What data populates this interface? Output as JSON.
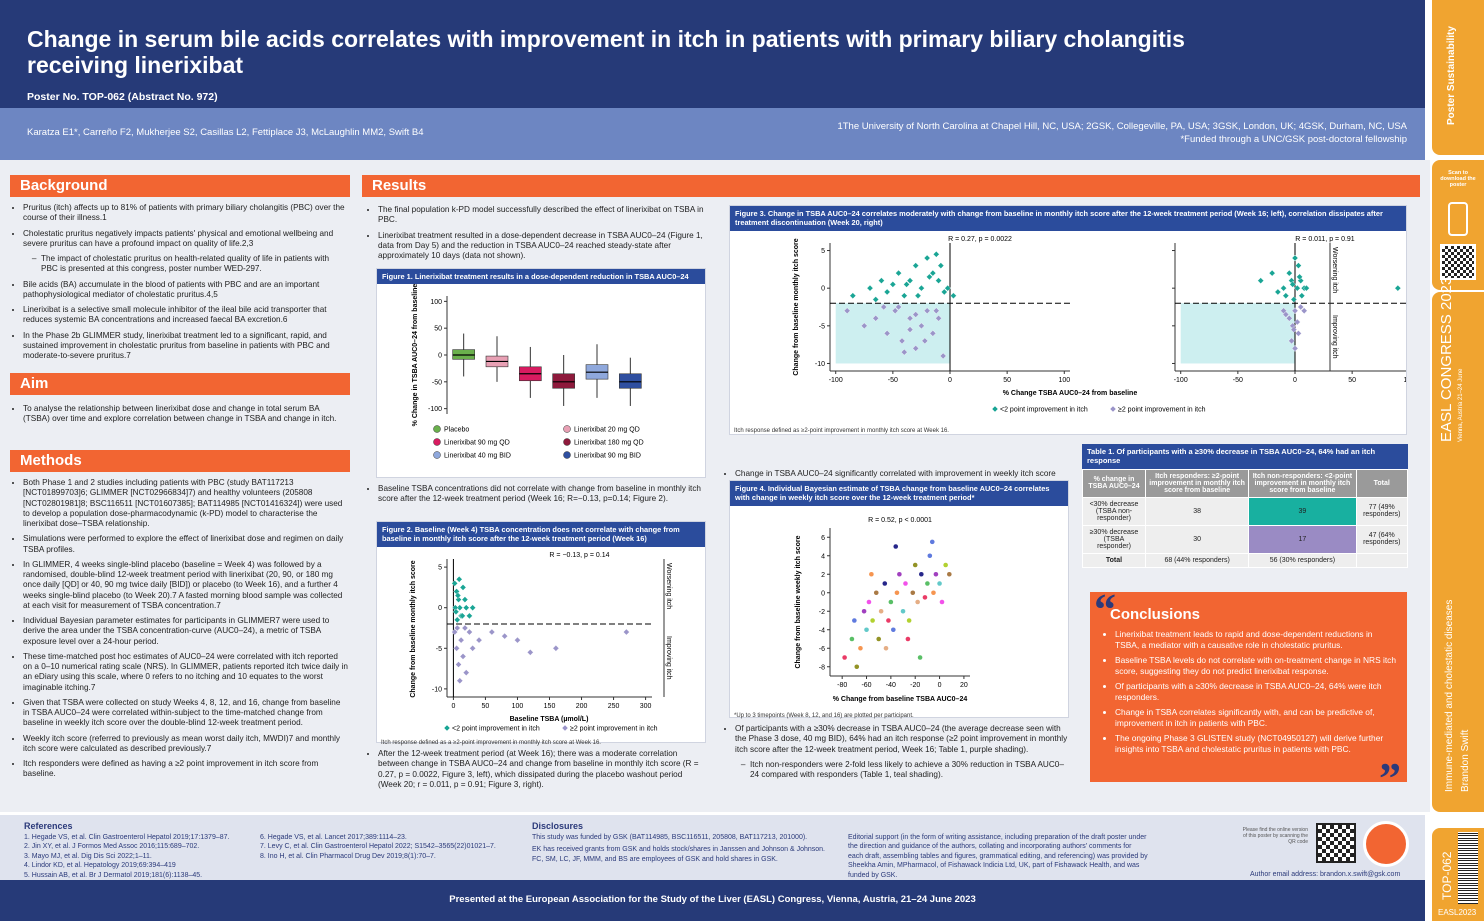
{
  "header": {
    "title": "Change in serum bile acids correlates with improvement in itch in patients with primary biliary cholangitis receiving linerixibat",
    "poster_no": "Poster No. TOP-062 (Abstract No. 972)",
    "authors": "Karatza E1*, Carreño F2, Mukherjee S2, Casillas L2, Fettiplace J3, McLaughlin MM2, Swift B4",
    "affiliations": "1The University of North Carolina at Chapel Hill, NC, USA; 2GSK, Collegeville, PA, USA; 3GSK, London, UK; 4GSK, Durham, NC, USA",
    "funding": "*Funded through a UNC/GSK post-doctoral fellowship"
  },
  "background": {
    "heading": "Background",
    "bullets": [
      "Pruritus (itch) affects up to 81% of patients with primary biliary cholangitis (PBC) over the course of their illness.1",
      "Cholestatic pruritus negatively impacts patients' physical and emotional wellbeing and severe pruritus can have a profound impact on quality of life.2,3",
      "Bile acids (BA) accumulate in the blood of patients with PBC and are an important pathophysiological mediator of cholestatic pruritus.4,5",
      "Linerixibat is a selective small molecule inhibitor of the ileal bile acid transporter that reduces systemic BA concentrations and increased faecal BA excretion.6",
      "In the Phase 2b GLIMMER study, linerixibat treatment led to a significant, rapid, and sustained improvement in cholestatic pruritus from baseline in patients with PBC and moderate-to-severe pruritus.7"
    ],
    "sub_bullet": "The impact of cholestatic pruritus on health-related quality of life in patients with PBC is presented at this congress, poster number WED-297."
  },
  "aim": {
    "heading": "Aim",
    "text": "To analyse the relationship between linerixibat dose and change in total serum BA (TSBA) over time and explore correlation between change in TSBA and change in itch."
  },
  "methods": {
    "heading": "Methods",
    "bullets": [
      "Both Phase 1 and 2 studies including patients with PBC (study BAT117213 [NCT01899703]6; GLIMMER [NCT02966834]7) and healthy volunteers (205808 [NCT02801981]8; BSC116511 [NCT01607385]; BAT114985 [NCT01416324]) were used to develop a population dose-pharmacodynamic (k-PD) model to characterise the linerixibat dose–TSBA relationship.",
      "Simulations were performed to explore the effect of linerixibat dose and regimen on daily TSBA profiles.",
      "In GLIMMER, 4 weeks single-blind placebo (baseline = Week 4) was followed by a randomised, double-blind 12-week treatment period with linerixibat (20, 90, or 180 mg once daily [QD] or 40, 90 mg twice daily [BID]) or placebo (to Week 16), and a further 4 weeks single-blind placebo (to Week 20).7 A fasted morning blood sample was collected at each visit for measurement of TSBA concentration.7",
      "Individual Bayesian parameter estimates for participants in GLIMMER7 were used to derive the area under the TSBA concentration-curve (AUC0–24), a metric of TSBA exposure level over a 24-hour period.",
      "These time-matched post hoc estimates of AUC0–24 were correlated with itch reported on a 0–10 numerical rating scale (NRS). In GLIMMER, patients reported itch twice daily in an eDiary using this scale, where 0 refers to no itching and 10 equates to the worst imaginable itching.7",
      "Given that TSBA were collected on study Weeks 4, 8, 12, and 16, change from baseline in TSBA AUC0–24 were correlated within-subject to the time-matched change from baseline in weekly itch score over the double-blind 12-week treatment period.",
      "Weekly itch score (referred to previously as mean worst daily itch, MWDI)7 and monthly itch score were calculated as described previously.7",
      "Itch responders were defined as having a ≥2 point improvement in itch score from baseline."
    ]
  },
  "results": {
    "heading": "Results",
    "col1": [
      "The final population k-PD model successfully described the effect of linerixibat on TSBA in PBC.",
      "Linerixibat treatment resulted in a dose-dependent decrease in TSBA AUC0–24 (Figure 1, data from Day 5) and the reduction in TSBA AUC0–24 reached steady-state after approximately 10 days (data not shown).",
      "Baseline TSBA concentrations did not correlate with change from baseline in monthly itch score after the 12-week treatment period (Week 16; R=−0.13, p=0.14; Figure 2).",
      "After the 12-week treatment period (at Week 16); there was a moderate correlation between change in TSBA AUC0–24 and change from baseline in monthly itch score (R = 0.27, p = 0.0022, Figure 3, left), which dissipated during the placebo washout period (Week 20; r = 0.011, p = 0.91; Figure 3, right)."
    ],
    "col2": [
      "Change in TSBA AUC0–24 significantly correlated with improvement in weekly itch score from baseline over the 12-week treatment period (R = 0.52, p < 0.0001; Figure 4).",
      "Of participants with a ≥30% decrease in TSBA AUC0–24 (the average decrease seen with the Phase 3 dose, 40 mg BID), 64% had an itch response (≥2 point improvement in monthly itch score after the 12-week treatment period, Week 16; Table 1, purple shading)."
    ],
    "col2_sub": "Itch non-responders were 2-fold less likely to achieve a 30% reduction in TSBA AUC0–24 compared with responders (Table 1, teal shading)."
  },
  "fig1": {
    "type": "box",
    "title": "Figure 1. Linerixibat treatment results in a dose-dependent reduction in TSBA AUC0–24",
    "ylabel": "% Change in TSBA AUC0–24 from baseline",
    "ylim": [
      -110,
      110
    ],
    "yticks": [
      -100,
      -50,
      0,
      50,
      100
    ],
    "groups": [
      {
        "name": "Placebo",
        "color": "#6ab04c",
        "low": -40,
        "q1": -8,
        "median": 0,
        "q3": 10,
        "high": 40
      },
      {
        "name": "Linerixibat 20 mg QD",
        "color": "#e8a0b4",
        "low": -50,
        "q1": -22,
        "median": -12,
        "q3": -2,
        "high": 35
      },
      {
        "name": "Linerixibat 90 mg QD",
        "color": "#d81b60",
        "low": -80,
        "q1": -48,
        "median": -35,
        "q3": -22,
        "high": 15
      },
      {
        "name": "Linerixibat 180 mg QD",
        "color": "#8e1a3c",
        "low": -95,
        "q1": -62,
        "median": -50,
        "q3": -35,
        "high": 0
      },
      {
        "name": "Linerixibat 40 mg BID",
        "color": "#8fa8dc",
        "low": -80,
        "q1": -45,
        "median": -32,
        "q3": -18,
        "high": 20
      },
      {
        "name": "Linerixibat 90 mg BID",
        "color": "#2f4fa0",
        "low": -95,
        "q1": -62,
        "median": -50,
        "q3": -35,
        "high": -5
      }
    ]
  },
  "fig2": {
    "type": "scatter",
    "title": "Figure 2. Baseline (Week 4) TSBA concentration does not correlate with change from baseline in monthly itch score after the 12-week treatment period (Week 16)",
    "annotation": "R = −0.13, p = 0.14",
    "xlabel": "Baseline TSBA (µmol/L)",
    "ylabel": "Change from baseline monthly itch score",
    "worse": "Worsening itch",
    "better": "Improving itch",
    "xlim": [
      -10,
      310
    ],
    "xticks": [
      0,
      50,
      100,
      150,
      200,
      250,
      300
    ],
    "ylim": [
      -11,
      6
    ],
    "yticks": [
      -10,
      -5,
      0,
      5
    ],
    "threshold": -2,
    "vline": 0,
    "series": [
      {
        "name": "<2 point improvement in itch",
        "color": "#1aa595",
        "x": [
          2,
          5,
          8,
          10,
          12,
          15,
          3,
          6,
          18,
          20,
          25,
          7,
          4,
          30,
          9,
          14
        ],
        "y": [
          3,
          2,
          1,
          0,
          -1,
          2.5,
          0,
          -1.5,
          1,
          0,
          -1,
          1.5,
          -0.5,
          0,
          3.5,
          -1
        ]
      },
      {
        "name": "≥2 point improvement in itch",
        "color": "#9b95c9",
        "x": [
          2,
          5,
          8,
          12,
          15,
          20,
          25,
          30,
          40,
          60,
          80,
          100,
          120,
          160,
          270,
          10,
          18,
          6
        ],
        "y": [
          -3,
          -5,
          -7,
          -4,
          -6,
          -8,
          -3,
          -5,
          -4,
          -3,
          -3.5,
          -4,
          -5.5,
          -5,
          -3,
          -9,
          -2.5,
          -2.5
        ]
      }
    ],
    "footnote": "Itch response defined as a ≥2-point improvement in monthly itch score at Week 16."
  },
  "fig3": {
    "type": "scatter",
    "title": "Figure 3. Change in TSBA AUC0–24 correlates moderately with change from baseline in monthly itch score after the 12-week treatment period (Week 16; left), correlation dissipates after treatment discontinuation (Week 20, right)",
    "xlabel": "% Change TSBA AUC0–24 from baseline",
    "ylabel": "Change from baseline monthly itch score",
    "worse": "Worsening itch",
    "better": "Improving itch",
    "xlim": [
      -105,
      105
    ],
    "xticks": [
      -100,
      -50,
      0,
      50,
      100
    ],
    "ylim": [
      -11,
      6
    ],
    "yticks": [
      -10,
      -5,
      0,
      5
    ],
    "threshold": -2,
    "vline": 0,
    "shade": {
      "x": [
        -100,
        0
      ],
      "y": [
        -10,
        -2
      ]
    },
    "panels": [
      {
        "annotation": "R = 0.27, p = 0.0022",
        "series": [
          {
            "name": "<2 point improvement in itch",
            "color": "#1aa595",
            "x": [
              -85,
              -70,
              -60,
              -50,
              -45,
              -40,
              -35,
              -30,
              -25,
              -20,
              -15,
              -10,
              -5,
              -2,
              -55,
              -38,
              -28,
              -18,
              -8,
              -65,
              3,
              -12
            ],
            "y": [
              -1,
              0,
              1,
              0.5,
              2,
              -1,
              1,
              3,
              0,
              4,
              2,
              1,
              -0.5,
              0,
              -0.5,
              0.5,
              -1,
              1.5,
              3,
              -1.5,
              -1,
              4.5
            ]
          },
          {
            "name": "≥2 point improvement in itch",
            "color": "#9b95c9",
            "x": [
              -90,
              -75,
              -65,
              -55,
              -48,
              -42,
              -35,
              -30,
              -25,
              -20,
              -15,
              -10,
              -6,
              -45,
              -35,
              -22,
              -58,
              -12,
              -30,
              -40
            ],
            "y": [
              -3,
              -5,
              -4,
              -6,
              -3,
              -7,
              -4,
              -8,
              -5,
              -3,
              -6,
              -4,
              -9,
              -2.5,
              -5.5,
              -7,
              -2.5,
              -3,
              -3.5,
              -8.5
            ]
          }
        ]
      },
      {
        "annotation": "R = 0.011, p = 0.91",
        "series": [
          {
            "name": "<2 point improvement in itch",
            "color": "#1aa595",
            "x": [
              -30,
              -10,
              -5,
              -3,
              0,
              2,
              5,
              8,
              -8,
              10,
              -15,
              3,
              -1,
              6,
              90,
              -20,
              -2,
              4
            ],
            "y": [
              1,
              0,
              2,
              1,
              4,
              0,
              1,
              0,
              -1,
              0,
              -0.5,
              3,
              -1.5,
              -1,
              0,
              2,
              0.5,
              1.5
            ]
          },
          {
            "name": "≥2 point improvement in itch",
            "color": "#9b95c9",
            "x": [
              -10,
              -5,
              -2,
              0,
              3,
              5,
              -8,
              -3,
              8,
              0,
              2,
              -1
            ],
            "y": [
              -3,
              -4,
              -5,
              -3,
              -6,
              -2.5,
              -3.5,
              -7,
              -3,
              -8,
              -4.5,
              -5.5
            ]
          }
        ]
      }
    ],
    "footnote": "Itch response defined as ≥2-point improvement in monthly itch score at Week 16."
  },
  "fig4": {
    "type": "scatter",
    "title": "Figure 4. Individual Bayesian estimate of TSBA change from baseline AUC0–24 correlates with change in weekly itch score over the 12-week treatment period*",
    "annotation": "R = 0.52, p < 0.0001",
    "xlabel": "% Change from baseline TSBA AUC0–24",
    "ylabel": "Change from baseline weekly itch score",
    "xlim": [
      -90,
      25
    ],
    "xticks": [
      -80,
      -60,
      -40,
      -20,
      0,
      20
    ],
    "ylim": [
      -9,
      7
    ],
    "yticks": [
      -8,
      -6,
      -4,
      -2,
      0,
      2,
      4,
      6
    ],
    "palette": [
      "#e6194b",
      "#3cb44b",
      "#4363d8",
      "#f58231",
      "#911eb4",
      "#46c0c0",
      "#f032e6",
      "#a5c90c",
      "#9a6324",
      "#808000",
      "#e0a070",
      "#000075"
    ],
    "x": [
      -78,
      -72,
      -70,
      -65,
      -62,
      -60,
      -58,
      -55,
      -52,
      -50,
      -48,
      -45,
      -42,
      -40,
      -38,
      -35,
      -33,
      -30,
      -28,
      -25,
      -22,
      -20,
      -18,
      -15,
      -12,
      -10,
      -8,
      -5,
      -3,
      0,
      2,
      5,
      8,
      -68,
      -44,
      -36,
      -26,
      -16,
      -6,
      -56
    ],
    "y": [
      -7,
      -5,
      -3,
      -6,
      -2,
      -4,
      -1,
      -3,
      0,
      -5,
      -2,
      1,
      -3,
      -1,
      -4,
      0,
      2,
      -2,
      1,
      -3,
      0,
      3,
      -1,
      2,
      -0.5,
      1,
      4,
      0,
      2,
      1,
      -1,
      3,
      2,
      -8,
      -6,
      5,
      -5,
      -7,
      5.5,
      2
    ],
    "footnote": "*Up to 3 timepoints (Week 8, 12, and 16) are plotted per participant."
  },
  "table": {
    "title": "Table 1. Of participants with a ≥30% decrease in TSBA AUC0–24, 64% had an itch response",
    "header": [
      "% change in TSBA AUC0–24",
      "Itch responders: ≥2-point improvement in monthly itch score from baseline",
      "Itch non-responders: <2-point improvement in monthly itch score from baseline",
      "Total"
    ],
    "rows": [
      [
        "<30% decrease (TSBA non-responder)",
        "38",
        "39",
        "77 (49% responders)"
      ],
      [
        "≥30% decrease (TSBA responder)",
        "30",
        "17",
        "47 (64% responders)"
      ],
      [
        "Total",
        "68 (44% responders)",
        "56 (30% responders)"
      ]
    ]
  },
  "conclusions": {
    "heading": "Conclusions",
    "bullets": [
      "Linerixibat treatment leads to rapid and dose-dependent reductions in TSBA, a mediator with a causative role in cholestatic pruritus.",
      "Baseline TSBA levels do not correlate with on-treatment change in NRS itch score, suggesting they do not predict linerixibat response.",
      "Of participants with a ≥30% decrease in TSBA AUC0–24, 64% were itch responders.",
      "Change in TSBA correlates significantly with, and can be predictive of, improvement in itch in patients with PBC.",
      "The ongoing Phase 3 GLISTEN study (NCT04950127) will derive further insights into TSBA and cholestatic pruritus in patients with PBC."
    ]
  },
  "references": {
    "heading": "References",
    "items": [
      "1. Hegade VS, et al. Clin Gastroenterol Hepatol 2019;17:1379–87.",
      "2. Jin XY, et al. J Formos Med Assoc 2016;115:689–702.",
      "3. Mayo MJ, et al. Dig Dis Sci 2022;1–11.",
      "4. Lindor KD, et al. Hepatology 2019;69:394–419",
      "5. Hussain AB, et al. Br J Dermatol 2019;181(6):1138–45.",
      "6. Hegade VS, et al. Lancet 2017;389:1114–23.",
      "7. Levy C, et al. Clin Gastroenterol Hepatol 2022; S1542–3565(22)01021–7.",
      "8. Ino H, et al. Clin Pharmacol Drug Dev 2019;8(1):70–7."
    ]
  },
  "disclosures": {
    "heading": "Disclosures",
    "items": [
      "This study was funded by GSK (BAT114985, BSC116511, 205808, BAT117213, 201000).",
      "EK has received grants from GSK and holds stock/shares in Janssen and Johnson & Johnson. FC, SM, LC, JF, MMM, and BS are employees of GSK and hold shares in GSK.",
      "Editorial support (in the form of writing assistance, including preparation of the draft poster under the direction and guidance of the authors, collating and incorporating authors' comments for each draft, assembling tables and figures, grammatical editing, and referencing) was provided by Sheekha Amin, MPharmacol, of Fishawack Indicia Ltd, UK, part of Fishawack Health, and was funded by GSK."
    ],
    "qr_note": "Please find the online version of this poster by scanning the QR code",
    "email": "Author email address: brandon.x.swift@gsk.com"
  },
  "footer": "Presented at the European Association for the Study of the Liver (EASL) Congress, Vienna, Austria, 21–24 June 2023",
  "sidebar": {
    "logo": "Poster Sustainability",
    "scan": "Scan to download the poster",
    "congress": "EASL CONGRESS 2023",
    "venue": "Vienna, Austria 21–24 June",
    "topic": "Immune-mediated and cholestatic diseases",
    "presenter": "Brandon Swift",
    "poster": "TOP-062",
    "tag": "EASL2023"
  }
}
